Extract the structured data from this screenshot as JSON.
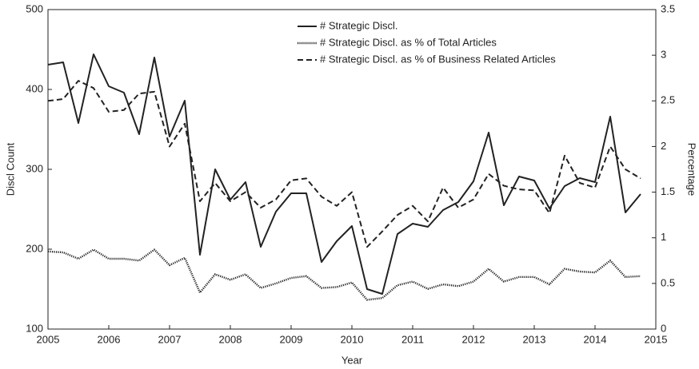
{
  "chart_data": {
    "type": "line",
    "x_label": "Year",
    "y_label": "Discl Count",
    "y2_label": "Percentage",
    "x": [
      2005,
      2005.25,
      2005.5,
      2005.75,
      2006,
      2006.25,
      2006.5,
      2006.75,
      2007,
      2007.25,
      2007.5,
      2007.75,
      2008,
      2008.25,
      2008.5,
      2008.75,
      2009,
      2009.25,
      2009.5,
      2009.75,
      2010,
      2010.25,
      2010.5,
      2010.75,
      2011,
      2011.25,
      2011.5,
      2011.75,
      2012,
      2012.25,
      2012.5,
      2012.75,
      2013,
      2013.25,
      2013.5,
      2013.75,
      2014,
      2014.25,
      2014.5,
      2014.75
    ],
    "series": [
      {
        "name": "# Strategic Discl.",
        "color": "#222222",
        "style": "solid",
        "values": [
          431,
          434,
          358,
          444,
          404,
          396,
          344,
          440,
          341,
          386,
          193,
          300,
          262,
          284,
          203,
          247,
          270,
          270,
          184,
          210,
          229,
          150,
          144,
          219,
          232,
          228,
          249,
          259,
          285,
          346,
          255,
          291,
          286,
          251,
          279,
          289,
          284,
          366,
          246,
          269
        ]
      },
      {
        "name": "# Strategic Discl. as % of Total Articles",
        "color": "#222222",
        "style": "dotted",
        "axis": "y2",
        "values": [
          0.85,
          0.84,
          0.77,
          0.87,
          0.77,
          0.77,
          0.75,
          0.87,
          0.7,
          0.78,
          0.4,
          0.6,
          0.54,
          0.6,
          0.45,
          0.5,
          0.56,
          0.58,
          0.45,
          0.46,
          0.51,
          0.32,
          0.34,
          0.48,
          0.52,
          0.44,
          0.49,
          0.47,
          0.52,
          0.66,
          0.52,
          0.57,
          0.57,
          0.49,
          0.66,
          0.63,
          0.62,
          0.75,
          0.57,
          0.58
        ]
      },
      {
        "name": "# Strategic Discl. as % of Business Related Articles",
        "color": "#222222",
        "style": "dashed",
        "axis": "y2",
        "values": [
          2.5,
          2.52,
          2.72,
          2.64,
          2.38,
          2.4,
          2.58,
          2.6,
          2.0,
          2.25,
          1.4,
          1.6,
          1.4,
          1.5,
          1.33,
          1.42,
          1.63,
          1.65,
          1.45,
          1.35,
          1.5,
          0.9,
          1.07,
          1.25,
          1.35,
          1.18,
          1.55,
          1.33,
          1.42,
          1.7,
          1.57,
          1.53,
          1.52,
          1.27,
          1.9,
          1.6,
          1.55,
          2.0,
          1.75,
          1.65
        ]
      }
    ],
    "xlim": [
      2005,
      2015
    ],
    "xticks": [
      2005,
      2006,
      2007,
      2008,
      2009,
      2010,
      2011,
      2012,
      2013,
      2014,
      2015
    ],
    "ylim": [
      100,
      500
    ],
    "yticks": [
      100,
      200,
      300,
      400,
      500
    ],
    "y2lim": [
      0,
      3.5
    ],
    "y2ticks": [
      0,
      0.5,
      1,
      1.5,
      2,
      2.5,
      3,
      3.5
    ],
    "grid": false,
    "legend": "upper right"
  }
}
